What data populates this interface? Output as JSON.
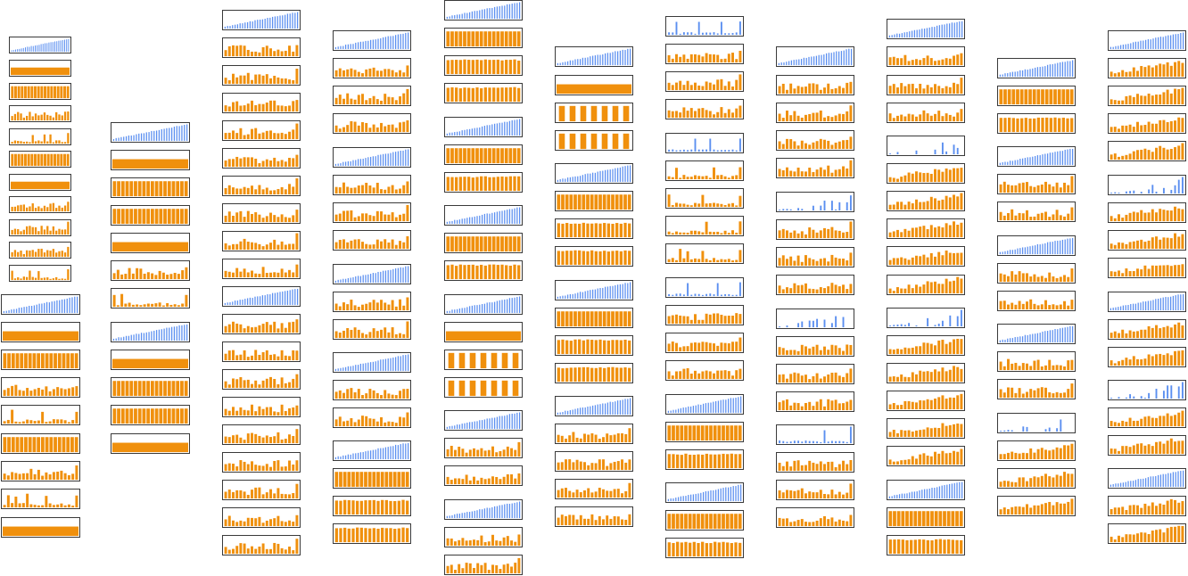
{
  "view": {
    "title": "",
    "colors": {
      "rising": "#5b8ff0",
      "bars": "#f0900d",
      "frame": "#3a3a3a"
    }
  },
  "columns": [
    {
      "id": "c1",
      "thumbs": [
        "rise",
        "solid",
        "comb",
        "mixed",
        "spiky",
        "comb",
        "solid",
        "mixed",
        "mixed",
        "mixed",
        "spiky",
        "rise",
        "solid",
        "comb",
        "mixed",
        "spiky",
        "comb",
        "mixed",
        "spiky",
        "solid"
      ]
    },
    {
      "id": "c2",
      "thumbs": [
        "rise",
        "solid",
        "comb",
        "comb",
        "solid",
        "mixed",
        "spiky",
        "rise",
        "solid",
        "comb",
        "comb",
        "solid"
      ]
    },
    {
      "id": "c3",
      "thumbs": [
        "rise",
        "mixed",
        "mixed",
        "mixed",
        "mixed",
        "mixed",
        "mixed",
        "mixed",
        "mixed",
        "mixed",
        "rise",
        "mixed",
        "mixed",
        "mixed",
        "mixed",
        "mixed",
        "mixed",
        "mixed",
        "mixed",
        "mixed"
      ]
    },
    {
      "id": "c4",
      "thumbs": [
        "rise",
        "mixed",
        "mixed",
        "mixed",
        "rise",
        "mixed",
        "mixed",
        "mixed",
        "rise",
        "mixed",
        "mixed",
        "rise",
        "mixed",
        "mixed",
        "rise",
        "comb",
        "tall",
        "tall"
      ]
    },
    {
      "id": "c5",
      "thumbs": [
        "rise",
        "comb",
        "tall",
        "tall",
        "rise",
        "comb",
        "tall",
        "rise",
        "comb",
        "tall",
        "rise",
        "solid",
        "gappy",
        "gappy",
        "rise",
        "mixed",
        "mixed",
        "rise",
        "mixed",
        "mixed"
      ]
    },
    {
      "id": "c6",
      "thumbs": [
        "rise",
        "solid",
        "gappy",
        "gappy",
        "rise",
        "comb",
        "tall",
        "tall",
        "rise",
        "comb",
        "tall",
        "tall",
        "rise",
        "mixed",
        "mixed",
        "mixed",
        "mixed"
      ]
    },
    {
      "id": "c7",
      "thumbs": [
        "flat",
        "mixed",
        "mixed",
        "mixed",
        "flat",
        "spiky",
        "spiky",
        "spiky",
        "spiky",
        "flat",
        "mixed",
        "mixed",
        "mixed",
        "rise",
        "comb",
        "tall",
        "rise",
        "comb",
        "tall"
      ]
    },
    {
      "id": "c8",
      "thumbs": [
        "rise",
        "mixed",
        "mixed",
        "mixed",
        "mixed",
        "sparse",
        "mixed",
        "mixed",
        "mixed",
        "sparse",
        "mixed",
        "mixed",
        "mixed",
        "flat",
        "mixed",
        "mixed",
        "mixed"
      ]
    },
    {
      "id": "c9",
      "thumbs": [
        "rise",
        "mixed",
        "mixed",
        "mixed",
        "sparse",
        "ramp",
        "ramp",
        "ramp",
        "ramp",
        "ramp",
        "sparse",
        "ramp",
        "ramp",
        "ramp",
        "ramp",
        "ramp",
        "rise",
        "comb",
        "tall"
      ]
    },
    {
      "id": "c10",
      "thumbs": [
        "rise",
        "comb",
        "tall",
        "rise",
        "mixed",
        "mixed",
        "rise",
        "mixed",
        "mixed",
        "rise",
        "mixed",
        "mixed",
        "sparse",
        "ramp",
        "ramp",
        "ramp"
      ]
    },
    {
      "id": "c11",
      "thumbs": [
        "rise",
        "ramp",
        "ramp",
        "ramp",
        "ramp",
        "sparse",
        "ramp",
        "ramp",
        "ramp",
        "rise",
        "ramp",
        "ramp",
        "sparse",
        "ramp",
        "ramp",
        "rise",
        "ramp",
        "ramp"
      ]
    }
  ]
}
